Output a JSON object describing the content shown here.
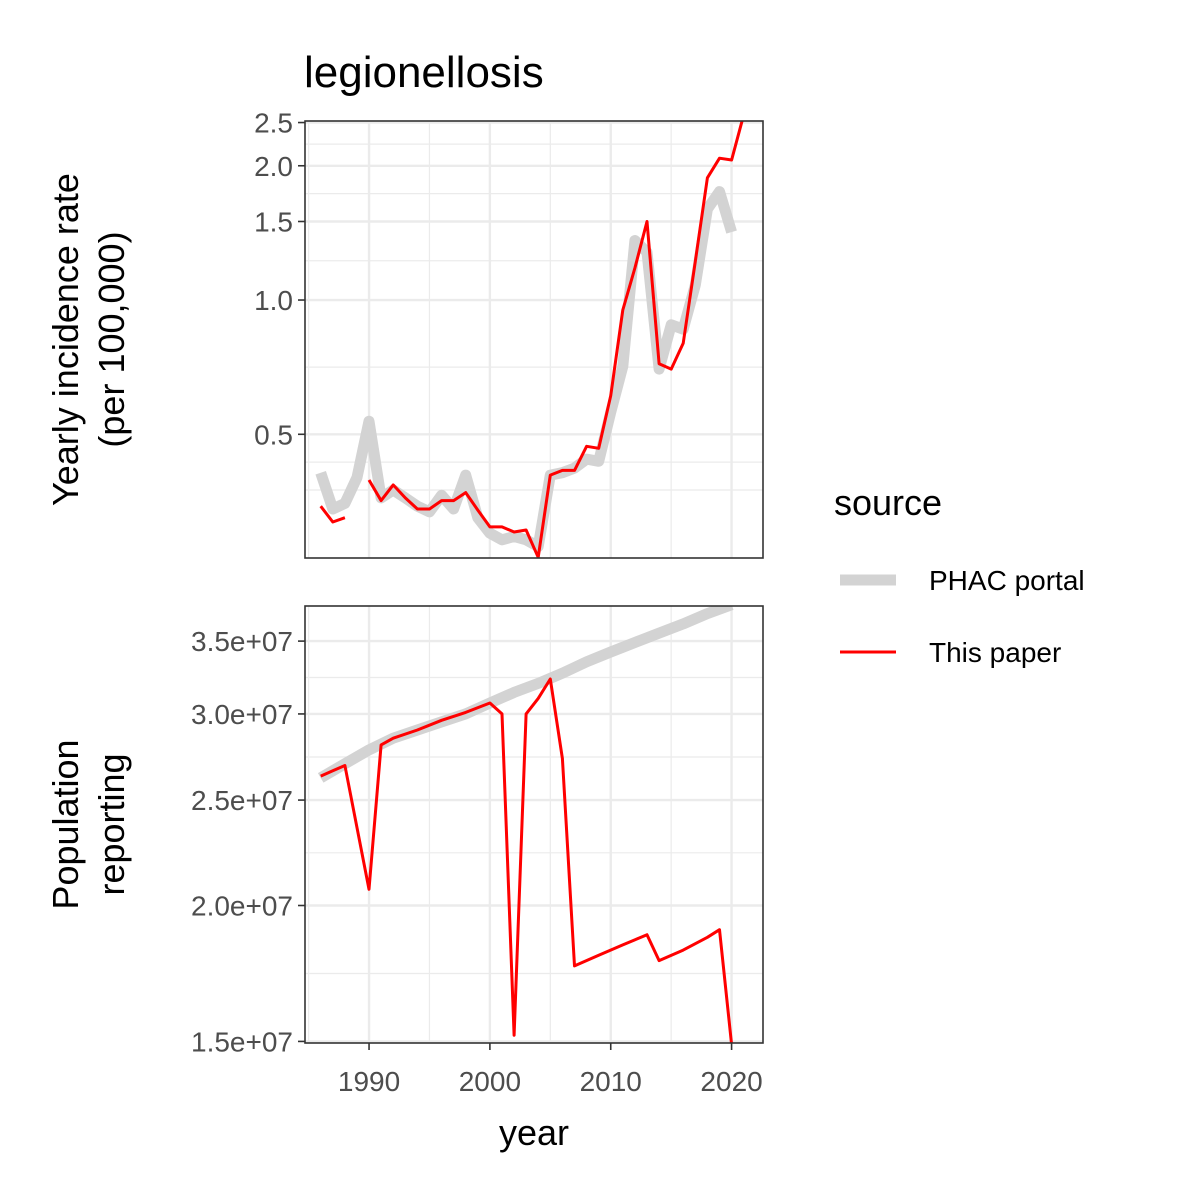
{
  "title": "legionellosis",
  "xlabel": "year",
  "legend": {
    "title": "source",
    "position": "right",
    "items": [
      {
        "label": "PHAC portal",
        "color": "#d3d3d3"
      },
      {
        "label": "This paper",
        "color": "#ff0000"
      }
    ]
  },
  "chart_data": [
    {
      "type": "line",
      "ylabel_lines": [
        "Yearly incidence rate",
        "(per 100,000)"
      ],
      "scale": "log",
      "xlim": [
        1984.7,
        2022.6
      ],
      "ylim": [
        0.264,
        2.52
      ],
      "x_ticks": [
        1990,
        2000,
        2010,
        2020
      ],
      "y_ticks": [
        0.5,
        1.0,
        1.5,
        2.0,
        2.5
      ],
      "y_tick_labels": [
        "0.5",
        "1.0",
        "1.5",
        "2.0",
        "2.5"
      ],
      "grid": true,
      "series": [
        {
          "name": "PHAC portal",
          "color": "#d3d3d3",
          "segments": [
            [
              [
                1986,
                0.41
              ],
              [
                1987,
                0.34
              ],
              [
                1988,
                0.35
              ],
              [
                1989,
                0.4
              ],
              [
                1990,
                0.535
              ],
              [
                1991,
                0.36
              ],
              [
                1992,
                0.375
              ],
              [
                1993,
                0.36
              ],
              [
                1994,
                0.345
              ],
              [
                1995,
                0.335
              ],
              [
                1996,
                0.365
              ],
              [
                1997,
                0.34
              ],
              [
                1998,
                0.405
              ],
              [
                1999,
                0.325
              ],
              [
                2000,
                0.3
              ],
              [
                2001,
                0.29
              ],
              [
                2002,
                0.295
              ],
              [
                2003,
                0.29
              ],
              [
                2004,
                0.28
              ],
              [
                2005,
                0.405
              ],
              [
                2006,
                0.41
              ],
              [
                2007,
                0.42
              ],
              [
                2008,
                0.44
              ],
              [
                2009,
                0.435
              ],
              [
                2010,
                0.56
              ],
              [
                2011,
                0.71
              ],
              [
                2012,
                1.36
              ],
              [
                2013,
                1.28
              ],
              [
                2014,
                0.7
              ],
              [
                2015,
                0.88
              ],
              [
                2016,
                0.86
              ],
              [
                2017,
                1.08
              ],
              [
                2018,
                1.6
              ],
              [
                2019,
                1.75
              ],
              [
                2020,
                1.42
              ]
            ]
          ]
        },
        {
          "name": "This paper",
          "color": "#ff0000",
          "segments": [
            [
              [
                1986,
                0.345
              ],
              [
                1987,
                0.318
              ],
              [
                1988,
                0.325
              ]
            ],
            [
              [
                1990,
                0.395
              ],
              [
                1991,
                0.355
              ],
              [
                1992,
                0.385
              ],
              [
                1993,
                0.36
              ],
              [
                1994,
                0.34
              ],
              [
                1995,
                0.34
              ],
              [
                1996,
                0.355
              ],
              [
                1997,
                0.355
              ],
              [
                1998,
                0.37
              ],
              [
                1999,
                0.338
              ],
              [
                2000,
                0.31
              ],
              [
                2001,
                0.31
              ],
              [
                2002,
                0.302
              ],
              [
                2003,
                0.305
              ],
              [
                2004,
                0.265
              ],
              [
                2005,
                0.405
              ],
              [
                2006,
                0.415
              ],
              [
                2007,
                0.415
              ],
              [
                2008,
                0.47
              ],
              [
                2009,
                0.465
              ],
              [
                2010,
                0.61
              ],
              [
                2011,
                0.95
              ],
              [
                2012,
                1.18
              ],
              [
                2013,
                1.5
              ],
              [
                2014,
                0.72
              ],
              [
                2015,
                0.7
              ],
              [
                2016,
                0.8
              ],
              [
                2017,
                1.22
              ],
              [
                2018,
                1.88
              ],
              [
                2019,
                2.08
              ],
              [
                2020,
                2.06
              ],
              [
                2021,
                2.6
              ]
            ]
          ]
        }
      ]
    },
    {
      "type": "line",
      "ylabel_lines": [
        "Population",
        "reporting"
      ],
      "scale": "log",
      "xlim": [
        1984.7,
        2022.6
      ],
      "ylim": [
        14950000,
        37700000
      ],
      "x_ticks": [
        1990,
        2000,
        2010,
        2020
      ],
      "x_tick_labels": [
        "1990",
        "2000",
        "2010",
        "2020"
      ],
      "y_ticks": [
        15000000,
        20000000,
        25000000,
        30000000,
        35000000
      ],
      "y_tick_labels": [
        "1.5e+07",
        "2.0e+07",
        "2.5e+07",
        "3.0e+07",
        "3.5e+07"
      ],
      "grid": true,
      "series": [
        {
          "name": "PHAC portal",
          "color": "#d3d3d3",
          "segments": [
            [
              [
                1986,
                26200000
              ],
              [
                1988,
                27000000
              ],
              [
                1990,
                27800000
              ],
              [
                1992,
                28500000
              ],
              [
                1994,
                29000000
              ],
              [
                1996,
                29500000
              ],
              [
                1998,
                30000000
              ],
              [
                2000,
                30700000
              ],
              [
                2002,
                31400000
              ],
              [
                2004,
                32000000
              ],
              [
                2006,
                32700000
              ],
              [
                2008,
                33500000
              ],
              [
                2010,
                34200000
              ],
              [
                2012,
                34900000
              ],
              [
                2014,
                35600000
              ],
              [
                2016,
                36300000
              ],
              [
                2018,
                37100000
              ],
              [
                2020,
                37800000
              ]
            ]
          ]
        },
        {
          "name": "This paper",
          "color": "#ff0000",
          "segments": [
            [
              [
                1986,
                26300000
              ],
              [
                1987,
                26600000
              ],
              [
                1988,
                26900000
              ],
              [
                1990,
                20700000
              ],
              [
                1991,
                28100000
              ],
              [
                1992,
                28500000
              ],
              [
                1994,
                29000000
              ],
              [
                1996,
                29600000
              ],
              [
                1998,
                30100000
              ],
              [
                2000,
                30700000
              ],
              [
                2001,
                30000000
              ],
              [
                2002,
                15200000
              ],
              [
                2003,
                30000000
              ],
              [
                2004,
                31000000
              ],
              [
                2005,
                32300000
              ],
              [
                2006,
                27300000
              ],
              [
                2007,
                17600000
              ],
              [
                2009,
                18000000
              ],
              [
                2011,
                18400000
              ],
              [
                2013,
                18800000
              ],
              [
                2014,
                17800000
              ],
              [
                2016,
                18200000
              ],
              [
                2018,
                18700000
              ],
              [
                2019,
                19000000
              ],
              [
                2020,
                14900000
              ],
              [
                2021,
                14900000
              ]
            ]
          ]
        }
      ]
    }
  ]
}
